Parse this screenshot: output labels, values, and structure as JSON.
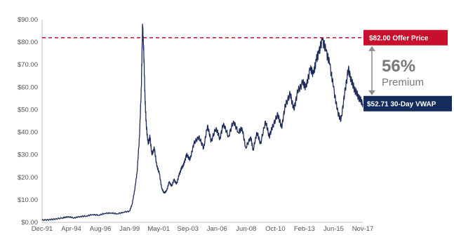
{
  "chart_data": {
    "type": "line",
    "title": "",
    "xlabel": "",
    "ylabel": "",
    "ylim": [
      0,
      90
    ],
    "y_ticks": [
      "$0.00",
      "$10.00",
      "$20.00",
      "$30.00",
      "$40.00",
      "$50.00",
      "$60.00",
      "$70.00",
      "$80.00",
      "$90.00"
    ],
    "x_ticks": [
      "Dec-91",
      "Apr-94",
      "Aug-96",
      "Jan-99",
      "May-01",
      "Sep-03",
      "Jan-06",
      "Jun-08",
      "Oct-10",
      "Feb-13",
      "Jun-15",
      "Nov-17"
    ],
    "grid": false,
    "series": [
      {
        "name": "",
        "color": "#1f2d5c",
        "x": [
          1991.92,
          1992.5,
          1993.0,
          1993.6,
          1994.0,
          1994.5,
          1995.0,
          1995.5,
          1996.0,
          1996.5,
          1997.0,
          1997.5,
          1998.0,
          1998.5,
          1999.0,
          1999.2,
          1999.4,
          1999.6,
          1999.8,
          1999.95,
          2000.05,
          2000.15,
          2000.25,
          2000.35,
          2000.5,
          2000.65,
          2000.8,
          2001.0,
          2001.2,
          2001.4,
          2001.6,
          2001.8,
          2002.0,
          2002.2,
          2002.4,
          2002.6,
          2002.8,
          2003.0,
          2003.2,
          2003.4,
          2003.6,
          2003.9,
          2004.2,
          2004.6,
          2005.0,
          2005.3,
          2005.6,
          2006.0,
          2006.3,
          2006.6,
          2007.0,
          2007.4,
          2007.8,
          2008.1,
          2008.4,
          2008.8,
          2009.0,
          2009.3,
          2009.6,
          2010.0,
          2010.3,
          2010.6,
          2011.0,
          2011.3,
          2011.6,
          2012.0,
          2012.3,
          2012.6,
          2013.0,
          2013.3,
          2013.6,
          2013.9,
          2014.1,
          2014.3,
          2014.6,
          2014.9,
          2015.2,
          2015.5,
          2015.8,
          2016.1,
          2016.4,
          2016.7,
          2017.0,
          2017.3,
          2017.6,
          2017.87
        ],
        "values": [
          1.0,
          1.2,
          1.5,
          2.0,
          2.5,
          2.0,
          2.6,
          2.8,
          3.5,
          3.2,
          4.0,
          4.2,
          3.8,
          4.5,
          5.0,
          8.0,
          14.0,
          22.0,
          38.0,
          60.0,
          88.0,
          75.0,
          55.0,
          43.0,
          35.0,
          38.0,
          30.0,
          33.0,
          25.0,
          22.0,
          15.0,
          13.0,
          14.0,
          18.0,
          16.0,
          19.0,
          17.0,
          21.0,
          24.0,
          26.0,
          30.0,
          28.0,
          35.0,
          38.0,
          33.0,
          43.0,
          36.0,
          42.0,
          37.0,
          44.0,
          38.0,
          45.0,
          40.0,
          42.0,
          33.0,
          38.0,
          32.0,
          40.0,
          35.0,
          45.0,
          38.0,
          43.0,
          48.0,
          42.0,
          52.0,
          57.0,
          50.0,
          58.0,
          62.0,
          60.0,
          68.0,
          66.0,
          72.0,
          75.0,
          81.0,
          76.0,
          70.0,
          60.0,
          50.0,
          45.0,
          57.0,
          68.0,
          62.0,
          58.0,
          55.0,
          52.7
        ]
      }
    ],
    "annotations": {
      "offer_price": {
        "value": 82.0,
        "label": "$82.00 Offer Price",
        "color": "#c8102e"
      },
      "vwap": {
        "value": 52.71,
        "label": "$52.71 30-Day VWAP",
        "color": "#142d5c"
      },
      "premium": {
        "value": "56%",
        "label": "Premium"
      }
    }
  }
}
